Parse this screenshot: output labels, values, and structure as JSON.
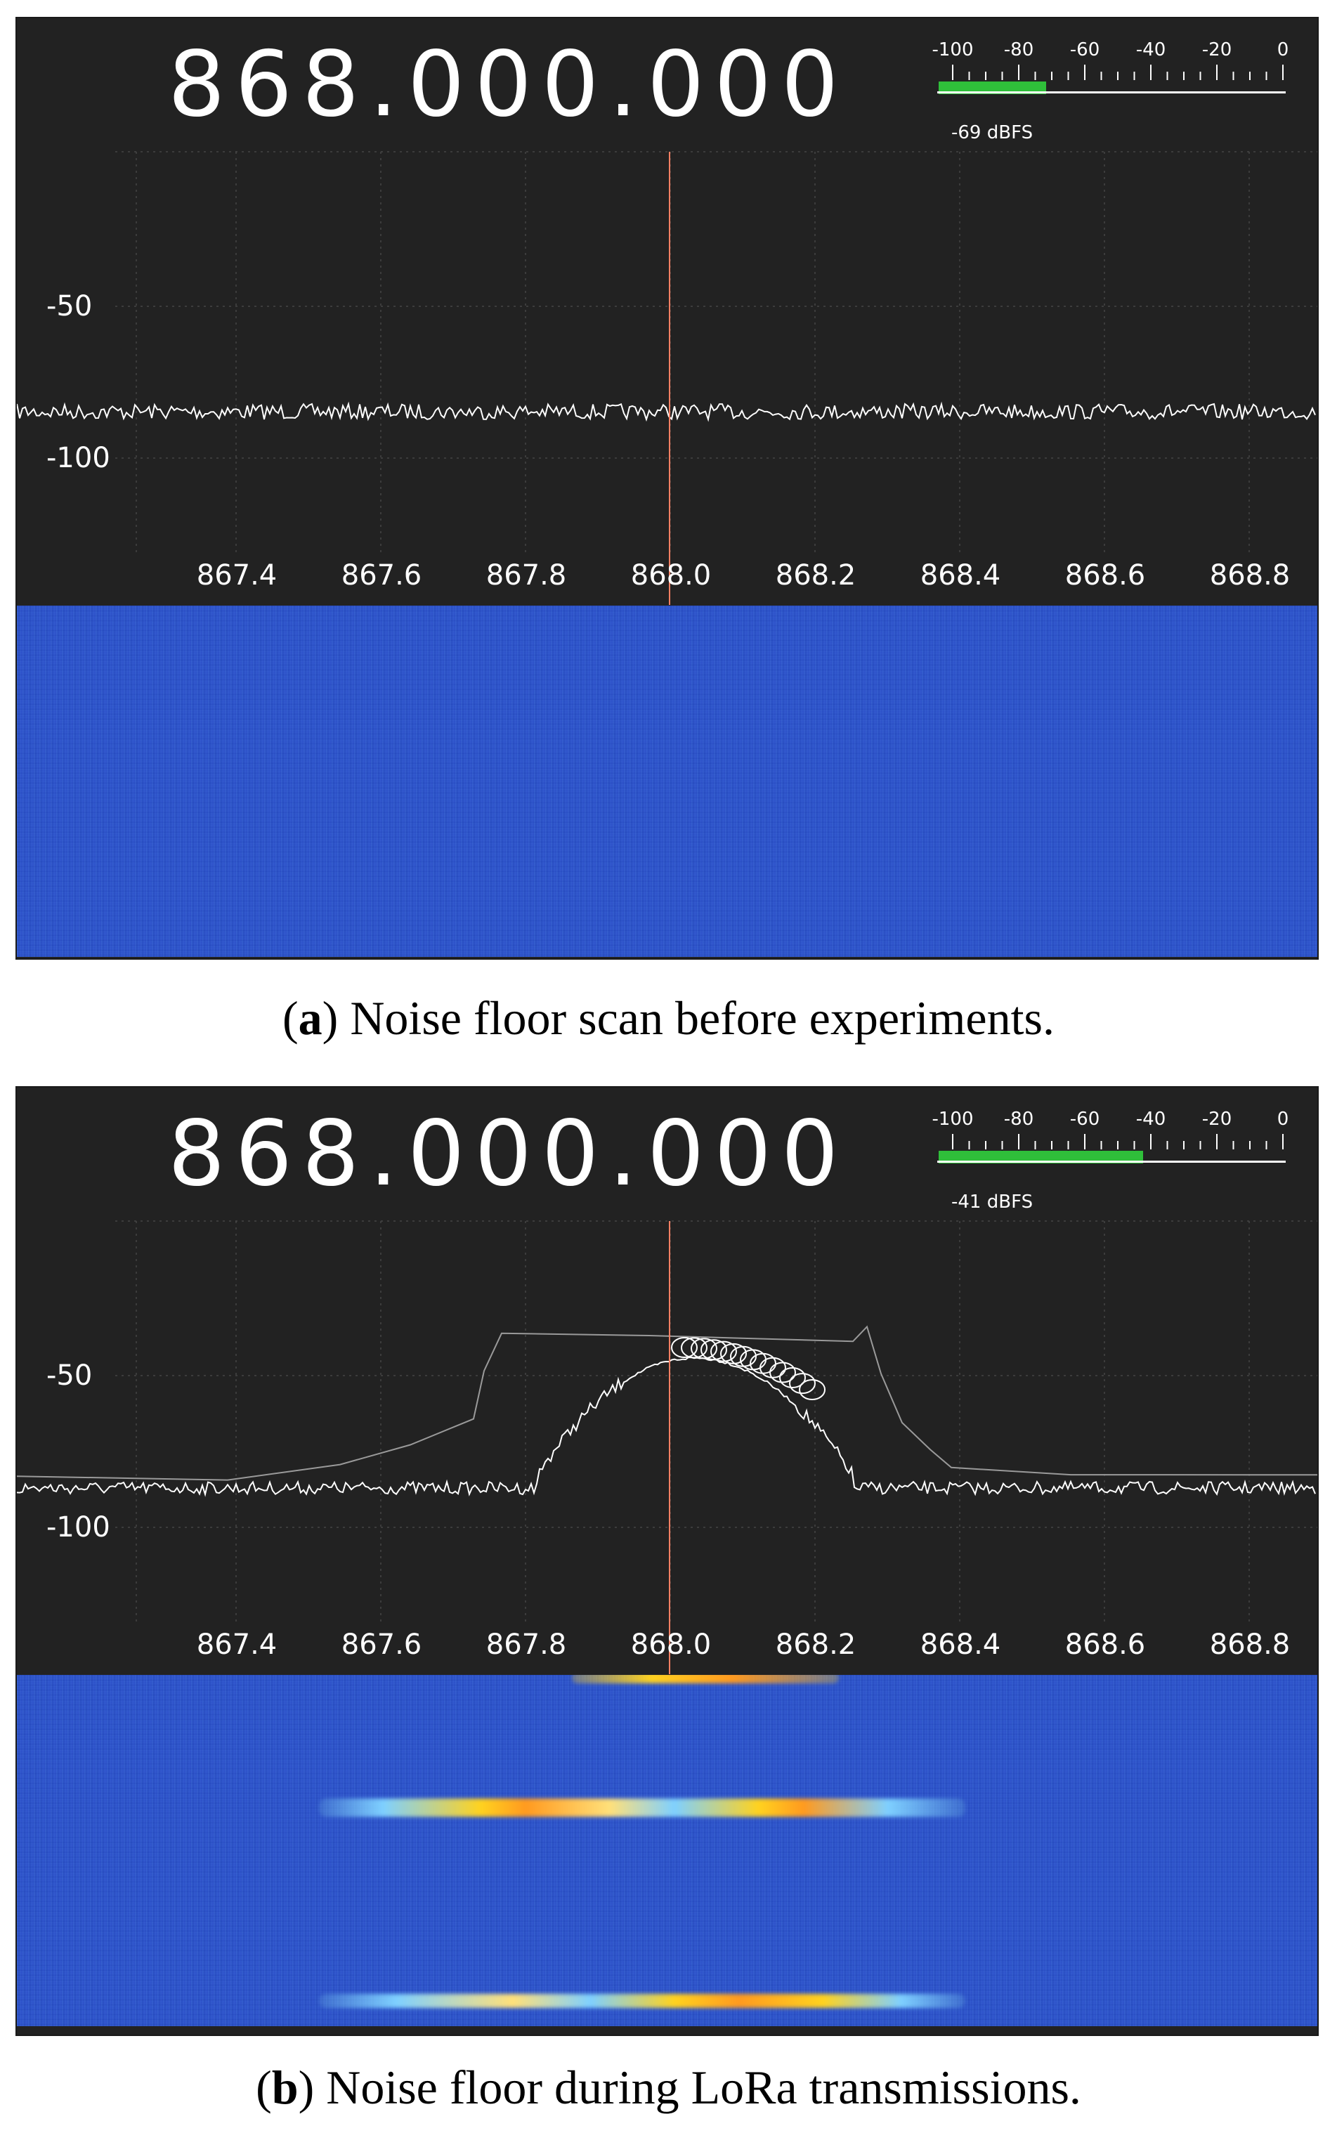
{
  "panels": [
    {
      "frequency": "868.000.000",
      "meter": {
        "ticks": [
          "-100",
          "-80",
          "-60",
          "-40",
          "-20",
          "0"
        ],
        "level_dbfs": -69,
        "value_text": "-69 dBFS",
        "bar_color": "#2fbf3a"
      },
      "y_ticks": [
        "-50",
        "-100"
      ],
      "x_ticks": [
        "867.4",
        "867.6",
        "867.8",
        "868.0",
        "868.2",
        "868.4",
        "868.6",
        "868.8"
      ],
      "tuning_line_color": "#ff7f62",
      "caption_letter": "a",
      "caption_text": " Noise floor scan before experiments."
    },
    {
      "frequency": "868.000.000",
      "meter": {
        "ticks": [
          "-100",
          "-80",
          "-60",
          "-40",
          "-20",
          "0"
        ],
        "level_dbfs": -41,
        "value_text": "-41 dBFS",
        "bar_color": "#2fbf3a"
      },
      "y_ticks": [
        "-50",
        "-100"
      ],
      "x_ticks": [
        "867.4",
        "867.6",
        "867.8",
        "868.0",
        "868.2",
        "868.4",
        "868.6",
        "868.8"
      ],
      "tuning_line_color": "#ff7f62",
      "caption_letter": "b",
      "caption_text": " Noise floor during LoRa transmissions."
    }
  ],
  "colors": {
    "panel_background": "#222222",
    "trace": "#ffffff",
    "waterfall_noise": "#2f56c9",
    "burst_hot": "#ffd21f",
    "burst_warm": "#ff9a1f"
  }
}
